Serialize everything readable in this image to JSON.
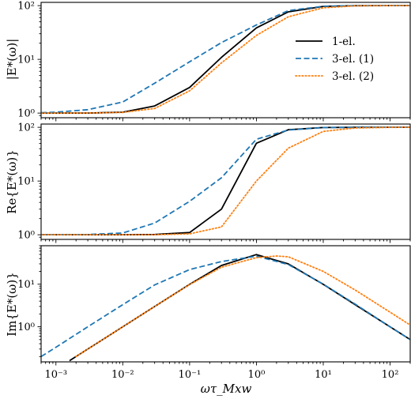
{
  "chart_data": [
    {
      "type": "line",
      "ylabel": "|E*(ω)|",
      "xlabel": "",
      "xscale": "log",
      "yscale": "log",
      "xlim": [
        0.0006,
        200
      ],
      "ylim": [
        0.82,
        115
      ],
      "yticks": [
        "10⁰",
        "10¹",
        "10²"
      ],
      "legend": {
        "placement": "upper-right"
      },
      "series": [
        {
          "name": "1-el.",
          "color": "#000000",
          "style": "solid",
          "x": [
            0.0006,
            0.001,
            0.003,
            0.01,
            0.03,
            0.1,
            0.3,
            1,
            3,
            10,
            30,
            100,
            200
          ],
          "y": [
            1.0,
            1.0,
            1.0,
            1.04,
            1.36,
            3.0,
            10.9,
            38.5,
            76.7,
            96.7,
            99.6,
            100,
            100
          ]
        },
        {
          "name": "3-el. (1)",
          "color": "#1f77b4",
          "style": "dashed",
          "x": [
            0.0006,
            0.001,
            0.003,
            0.01,
            0.03,
            0.1,
            0.3,
            1,
            3,
            10,
            30,
            100,
            200
          ],
          "y": [
            1.02,
            1.04,
            1.16,
            1.61,
            3.6,
            9.0,
            20.5,
            43.6,
            81,
            97.4,
            99.7,
            100,
            100
          ]
        },
        {
          "name": "3-el. (2)",
          "color": "#ff7f0e",
          "style": "dotted",
          "x": [
            0.0006,
            0.001,
            0.003,
            0.01,
            0.03,
            0.1,
            0.3,
            1,
            3,
            10,
            30,
            100,
            200
          ],
          "y": [
            1.0,
            1.0,
            1.0,
            1.03,
            1.22,
            2.6,
            8.6,
            27.9,
            62,
            91,
            99,
            100,
            100
          ]
        }
      ]
    },
    {
      "type": "line",
      "ylabel": "Re{E*(ω)}",
      "xlabel": "",
      "xscale": "log",
      "yscale": "log",
      "xlim": [
        0.0006,
        200
      ],
      "ylim": [
        0.82,
        115
      ],
      "yticks": [
        "10⁰",
        "10¹",
        "10²"
      ],
      "series": [
        {
          "name": "1-el.",
          "color": "#000000",
          "style": "solid",
          "x": [
            0.0006,
            0.001,
            0.003,
            0.01,
            0.03,
            0.1,
            0.3,
            1,
            3,
            10,
            30,
            100,
            200
          ],
          "y": [
            1.0,
            1.0,
            1.0,
            1.0,
            1.01,
            1.1,
            3.0,
            50.5,
            90,
            99,
            99.9,
            100,
            100
          ]
        },
        {
          "name": "3-el. (1)",
          "color": "#1f77b4",
          "style": "dashed",
          "x": [
            0.0006,
            0.001,
            0.003,
            0.01,
            0.03,
            0.1,
            0.3,
            1,
            3,
            10,
            30,
            100,
            200
          ],
          "y": [
            1.0,
            1.0,
            1.01,
            1.08,
            1.65,
            4.2,
            11.5,
            60,
            89,
            99,
            99.9,
            100,
            100
          ]
        },
        {
          "name": "3-el. (2)",
          "color": "#ff7f0e",
          "style": "dotted",
          "x": [
            0.0006,
            0.001,
            0.003,
            0.01,
            0.03,
            0.1,
            0.3,
            1,
            3,
            10,
            30,
            100,
            200
          ],
          "y": [
            1.0,
            1.0,
            1.0,
            1.0,
            1.0,
            1.04,
            1.4,
            10.0,
            41,
            84,
            97,
            99.7,
            100
          ]
        }
      ]
    },
    {
      "type": "line",
      "ylabel": "Im{E*(ω)}",
      "xlabel": "ωτ_Mxw",
      "xscale": "log",
      "yscale": "log",
      "xlim": [
        0.0006,
        200
      ],
      "ylim": [
        0.15,
        80
      ],
      "yticks": [
        "10⁰",
        "10¹"
      ],
      "xticks": [
        "10⁻³",
        "10⁻²",
        "10⁻¹",
        "10⁰",
        "10¹",
        "10²"
      ],
      "series": [
        {
          "name": "1-el.",
          "color": "#000000",
          "style": "solid",
          "x": [
            0.0016,
            0.003,
            0.01,
            0.03,
            0.1,
            0.3,
            1,
            3,
            10,
            30,
            100,
            200
          ],
          "y": [
            0.16,
            0.3,
            1.0,
            3.0,
            9.9,
            27.5,
            49.5,
            30,
            9.9,
            3.3,
            1.0,
            0.5
          ]
        },
        {
          "name": "3-el. (1)",
          "color": "#1f77b4",
          "style": "dashed",
          "x": [
            0.0006,
            0.001,
            0.003,
            0.01,
            0.03,
            0.1,
            0.3,
            1,
            3,
            10,
            30,
            100,
            200
          ],
          "y": [
            0.2,
            0.33,
            1.0,
            3.3,
            9.6,
            22,
            34,
            45.5,
            29,
            10,
            3.4,
            1.0,
            0.5
          ]
        },
        {
          "name": "3-el. (2)",
          "color": "#ff7f0e",
          "style": "dotted",
          "x": [
            0.002,
            0.003,
            0.01,
            0.03,
            0.1,
            0.3,
            1,
            2,
            3,
            10,
            30,
            100,
            200
          ],
          "y": [
            0.2,
            0.3,
            1.0,
            3.0,
            9.8,
            25,
            42,
            46,
            44,
            20,
            7.3,
            2.2,
            1.1
          ]
        }
      ]
    }
  ]
}
